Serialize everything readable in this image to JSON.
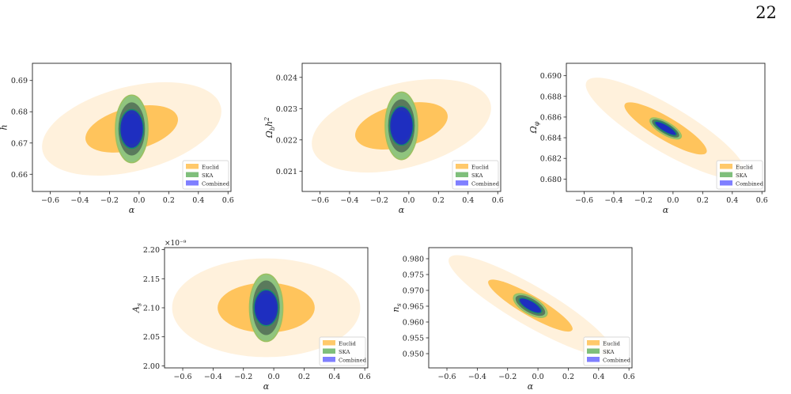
{
  "page_number": "22",
  "legend": [
    "Euclid",
    "SKA",
    "Combined"
  ],
  "colors": {
    "euclid_outer": "#fff1dc",
    "euclid_inner": "#ffc45c",
    "ska_outer": "#8fc47e",
    "ska_inner": "#5a7a5c",
    "combined_outer": "#2233b4",
    "combined_inner": "#1e2ec0",
    "legend_euclid": "#ffc96b",
    "legend_ska": "#7fbf7b",
    "legend_combined": "#7f7fff"
  },
  "chart_data": [
    {
      "type": "scatter",
      "title": "",
      "xlabel": "α",
      "ylabel": "h",
      "xlim": [
        -0.72,
        0.62
      ],
      "ylim": [
        0.6545,
        0.6955
      ],
      "xticks": [
        -0.6,
        -0.4,
        -0.2,
        0.0,
        0.2,
        0.4,
        0.6
      ],
      "xtick_labels": [
        "−0.6",
        "−0.4",
        "−0.2",
        "0.0",
        "0.2",
        "0.4",
        "0.6"
      ],
      "yticks": [
        0.66,
        0.67,
        0.68,
        0.69
      ],
      "ytick_labels": [
        "0.66",
        "0.67",
        "0.68",
        "0.69"
      ],
      "center": [
        -0.05,
        0.6745
      ],
      "ellipses": {
        "euclid_2sigma": {
          "semi_x": 0.62,
          "semi_y": 0.0135,
          "slope": 0.012
        },
        "euclid_1sigma": {
          "semi_x": 0.32,
          "semi_y": 0.0068,
          "slope": 0.012
        },
        "ska_2sigma": {
          "semi_x": 0.11,
          "semi_y": 0.0108,
          "slope": 0.0
        },
        "ska_1sigma": {
          "semi_x": 0.09,
          "semi_y": 0.0085,
          "slope": 0.0
        },
        "combined_2sigma": {
          "semi_x": 0.08,
          "semi_y": 0.0062,
          "slope": 0.0
        },
        "combined_1sigma": {
          "semi_x": 0.065,
          "semi_y": 0.0048,
          "slope": 0.0
        }
      },
      "legend_position": "lower-right"
    },
    {
      "type": "scatter",
      "title": "",
      "xlabel": "α",
      "ylabel": "Ω_b h²",
      "xlim": [
        -0.72,
        0.62
      ],
      "ylim": [
        0.02035,
        0.02445
      ],
      "xticks": [
        -0.6,
        -0.4,
        -0.2,
        0.0,
        0.2,
        0.4,
        0.6
      ],
      "xtick_labels": [
        "−0.6",
        "−0.4",
        "−0.2",
        "0.0",
        "0.2",
        "0.4",
        "0.6"
      ],
      "yticks": [
        0.021,
        0.022,
        0.023,
        0.024
      ],
      "ytick_labels": [
        "0.021",
        "0.022",
        "0.023",
        "0.024"
      ],
      "center": [
        -0.05,
        0.02245
      ],
      "ellipses": {
        "euclid_2sigma": {
          "semi_x": 0.62,
          "semi_y": 0.00135,
          "slope": 0.0012
        },
        "euclid_1sigma": {
          "semi_x": 0.32,
          "semi_y": 0.00068,
          "slope": 0.0012
        },
        "ska_2sigma": {
          "semi_x": 0.11,
          "semi_y": 0.00108,
          "slope": 0.0
        },
        "ska_1sigma": {
          "semi_x": 0.09,
          "semi_y": 0.00085,
          "slope": 0.0
        },
        "combined_2sigma": {
          "semi_x": 0.08,
          "semi_y": 0.00062,
          "slope": 0.0
        },
        "combined_1sigma": {
          "semi_x": 0.065,
          "semi_y": 0.00048,
          "slope": 0.0
        }
      },
      "legend_position": "lower-right"
    },
    {
      "type": "scatter",
      "title": "",
      "xlabel": "α",
      "ylabel": "Ω_φ",
      "xlim": [
        -0.72,
        0.62
      ],
      "ylim": [
        0.6788,
        0.6912
      ],
      "xticks": [
        -0.6,
        -0.4,
        -0.2,
        0.0,
        0.2,
        0.4,
        0.6
      ],
      "xtick_labels": [
        "−0.6",
        "−0.4",
        "−0.2",
        "0.0",
        "0.2",
        "0.4",
        "0.6"
      ],
      "yticks": [
        0.68,
        0.682,
        0.684,
        0.686,
        0.688,
        0.69
      ],
      "ytick_labels": [
        "0.680",
        "0.682",
        "0.684",
        "0.686",
        "0.688",
        "0.690"
      ],
      "center": [
        -0.05,
        0.6849
      ],
      "ellipses": {
        "euclid_2sigma": {
          "semi_x": 0.62,
          "semi_y": 0.0022,
          "slope": -0.0085
        },
        "euclid_1sigma": {
          "semi_x": 0.32,
          "semi_y": 0.0011,
          "slope": -0.0085
        },
        "ska_2sigma": {
          "semi_x": 0.12,
          "semi_y": 0.0006,
          "slope": -0.0085
        },
        "ska_1sigma": {
          "semi_x": 0.105,
          "semi_y": 0.0005,
          "slope": -0.0085
        },
        "combined_2sigma": {
          "semi_x": 0.085,
          "semi_y": 0.00035,
          "slope": -0.0085
        },
        "combined_1sigma": {
          "semi_x": 0.07,
          "semi_y": 0.00027,
          "slope": -0.0085
        }
      },
      "legend_position": "lower-right"
    },
    {
      "type": "scatter",
      "title": "",
      "xlabel": "α",
      "ylabel": "A_s",
      "offset_label": "×10⁻⁹",
      "xlim": [
        -0.72,
        0.62
      ],
      "ylim": [
        1.9965,
        2.2035
      ],
      "xticks": [
        -0.6,
        -0.4,
        -0.2,
        0.0,
        0.2,
        0.4,
        0.6
      ],
      "xtick_labels": [
        "−0.6",
        "−0.4",
        "−0.2",
        "0.0",
        "0.2",
        "0.4",
        "0.6"
      ],
      "yticks": [
        2.0,
        2.05,
        2.1,
        2.15,
        2.2
      ],
      "ytick_labels": [
        "2.00",
        "2.05",
        "2.10",
        "2.15",
        "2.20"
      ],
      "center": [
        -0.05,
        2.1
      ],
      "ellipses": {
        "euclid_2sigma": {
          "semi_x": 0.62,
          "semi_y": 0.085,
          "slope": 0.0
        },
        "euclid_1sigma": {
          "semi_x": 0.32,
          "semi_y": 0.043,
          "slope": 0.0
        },
        "ska_2sigma": {
          "semi_x": 0.11,
          "semi_y": 0.058,
          "slope": 0.0
        },
        "ska_1sigma": {
          "semi_x": 0.09,
          "semi_y": 0.047,
          "slope": 0.0
        },
        "combined_2sigma": {
          "semi_x": 0.08,
          "semi_y": 0.031,
          "slope": 0.0
        },
        "combined_1sigma": {
          "semi_x": 0.065,
          "semi_y": 0.024,
          "slope": 0.0
        }
      },
      "legend_position": "lower-right"
    },
    {
      "type": "scatter",
      "title": "",
      "xlabel": "α",
      "ylabel": "n_s",
      "xlim": [
        -0.72,
        0.62
      ],
      "ylim": [
        0.9455,
        0.9835
      ],
      "xticks": [
        -0.6,
        -0.4,
        -0.2,
        0.0,
        0.2,
        0.4,
        0.6
      ],
      "xtick_labels": [
        "−0.6",
        "−0.4",
        "−0.2",
        "0.0",
        "0.2",
        "0.4",
        "0.6"
      ],
      "yticks": [
        0.95,
        0.955,
        0.96,
        0.965,
        0.97,
        0.975,
        0.98
      ],
      "ytick_labels": [
        "0.950",
        "0.955",
        "0.960",
        "0.965",
        "0.970",
        "0.975",
        "0.980"
      ],
      "center": [
        -0.05,
        0.9652
      ],
      "ellipses": {
        "euclid_2sigma": {
          "semi_x": 0.62,
          "semi_y": 0.0062,
          "slope": -0.028
        },
        "euclid_1sigma": {
          "semi_x": 0.32,
          "semi_y": 0.0032,
          "slope": -0.028
        },
        "ska_2sigma": {
          "semi_x": 0.125,
          "semi_y": 0.0026,
          "slope": -0.028
        },
        "ska_1sigma": {
          "semi_x": 0.11,
          "semi_y": 0.0022,
          "slope": -0.028
        },
        "combined_2sigma": {
          "semi_x": 0.085,
          "semi_y": 0.0015,
          "slope": -0.028
        },
        "combined_1sigma": {
          "semi_x": 0.07,
          "semi_y": 0.0012,
          "slope": -0.028
        }
      },
      "legend_position": "lower-right"
    }
  ]
}
